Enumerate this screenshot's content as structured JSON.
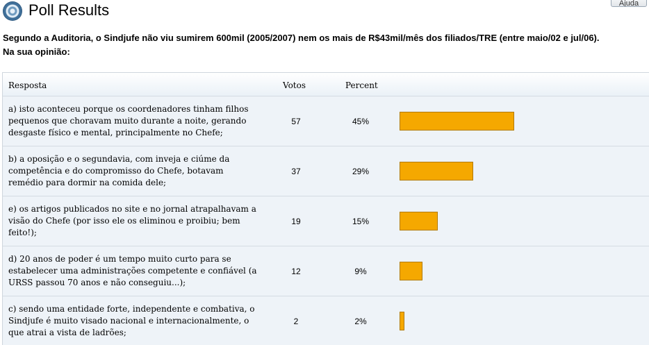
{
  "header": {
    "title": "Poll Results",
    "help_label": "Ajuda"
  },
  "question": {
    "line1": "Segundo a Auditoria, o Sindjufe não viu sumirem 600mil (2005/2007) nem os mais de R$43mil/mês dos filiados/TRE (entre maio/02 e jul/06).",
    "line2": "Na sua opinião:"
  },
  "table": {
    "headers": {
      "answer": "Resposta",
      "votes": "Votos",
      "percent": "Percent"
    },
    "rows": [
      {
        "lines": [
          "a) isto aconteceu porque os coordenadores tinham filhos",
          "pequenos que choravam muito durante a noite, gerando",
          "desgaste físico e mental, principalmente no Chefe;"
        ],
        "votes": "57",
        "percent": "45%",
        "share": 45
      },
      {
        "lines": [
          "b) a oposição e o segundavia, com inveja e ciúme da",
          "competência e do compromisso do Chefe, botavam",
          "remédio para dormir na comida dele;"
        ],
        "votes": "37",
        "percent": "29%",
        "share": 29
      },
      {
        "lines": [
          "e) os artigos publicados no site e no jornal atrapalhavam a",
          "visão do Chefe (por isso ele os eliminou e proibiu; bem",
          "feito!);"
        ],
        "votes": "19",
        "percent": "15%",
        "share": 15
      },
      {
        "lines": [
          "d) 20 anos de poder é um tempo muito curto para se",
          "estabelecer uma administrações competente e confiável (a",
          "URSS passou 70 anos e não conseguiu...);"
        ],
        "votes": "12",
        "percent": "9%",
        "share": 9
      },
      {
        "lines": [
          "c) sendo uma entidade forte, independente e combativa, o",
          "Sindjufe é muito visado nacional e internacionalmente, o",
          "que atrai a vista de ladrões;"
        ],
        "votes": "2",
        "percent": "2%",
        "share": 2
      }
    ]
  },
  "colors": {
    "bar": "#f5a800",
    "row_bg": "#eef3f8"
  }
}
